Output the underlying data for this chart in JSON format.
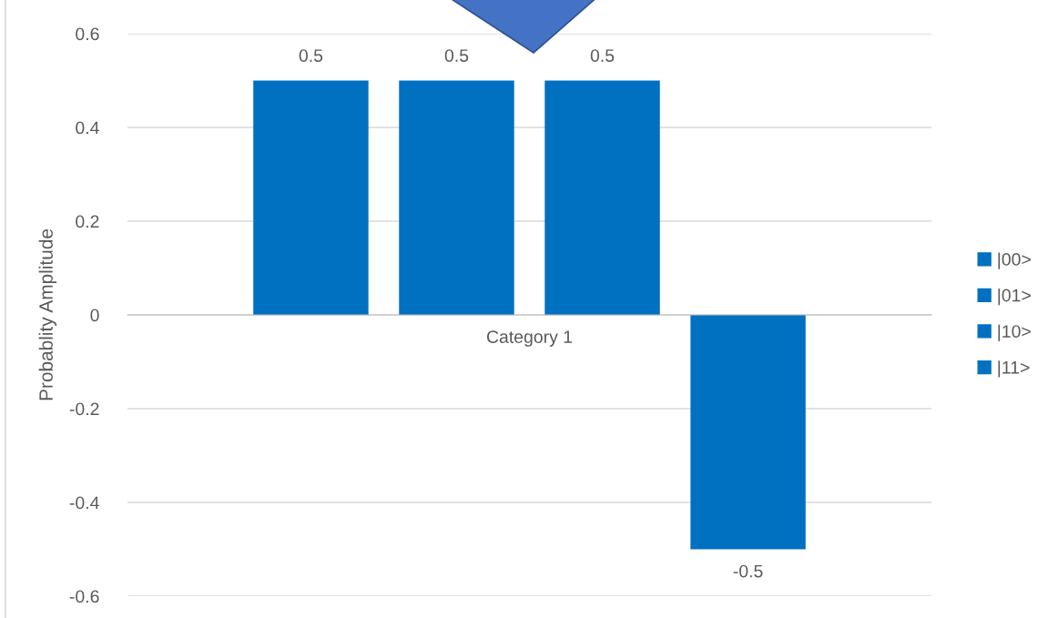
{
  "chart_data": {
    "type": "bar",
    "ylabel": "Probablity Amplitude",
    "categories": [
      "Category 1"
    ],
    "series": [
      {
        "name": "|00>",
        "color": "#0070c0",
        "values": [
          0.5
        ]
      },
      {
        "name": "|01>",
        "color": "#0070c0",
        "values": [
          0.5
        ]
      },
      {
        "name": "|10>",
        "color": "#0070c0",
        "values": [
          0.5
        ]
      },
      {
        "name": "|11>",
        "color": "#0070c0",
        "values": [
          -0.5
        ]
      }
    ],
    "ylim": [
      -0.6,
      0.6
    ],
    "yticks": [
      -0.6,
      -0.4,
      -0.2,
      0,
      0.2,
      0.4,
      0.6
    ],
    "grid": "y",
    "legend": "right",
    "data_labels": true
  }
}
